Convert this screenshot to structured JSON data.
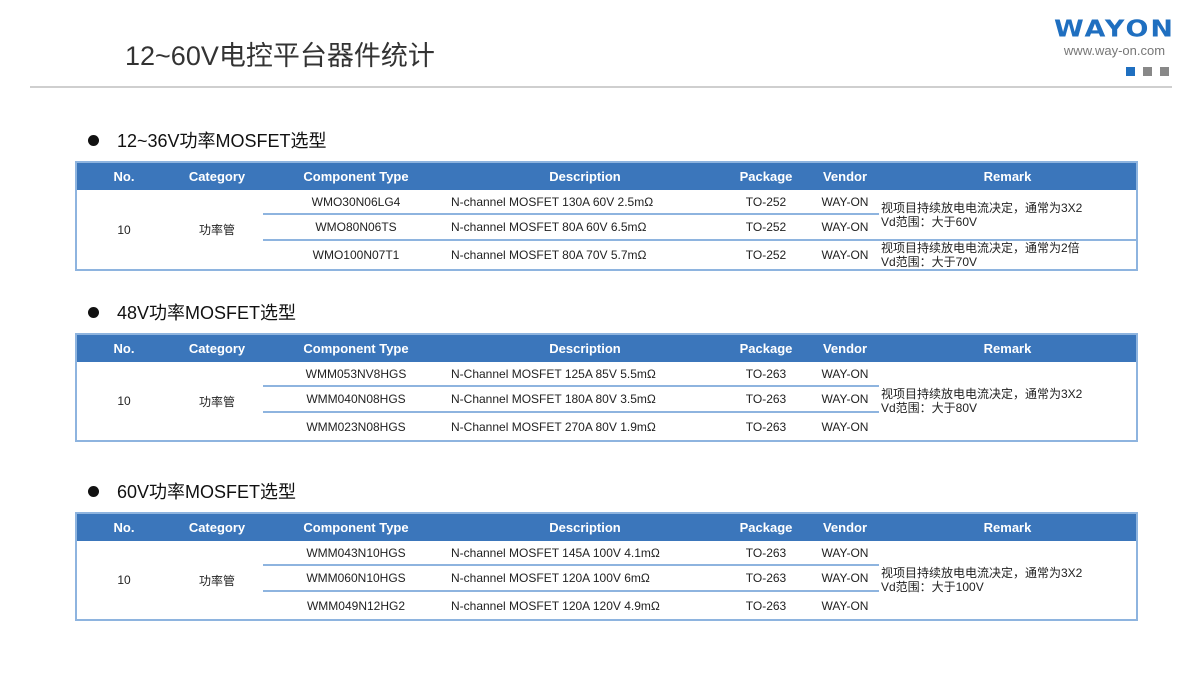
{
  "title": "12~60V电控平台器件统计",
  "logo": {
    "wordmark": "WAYON",
    "url": "www.way-on.com",
    "accent": "#1f6fc0"
  },
  "colors": {
    "header_bg": "#3b76bb",
    "border": "#8eb4df"
  },
  "columns": [
    "No.",
    "Category",
    "Component Type",
    "Description",
    "Package",
    "Vendor",
    "Remark"
  ],
  "sections": [
    {
      "heading": "12~36V功率MOSFET选型",
      "no": "10",
      "category": "功率管",
      "rows": [
        {
          "type": "WMO30N06LG4",
          "desc": "N-channel MOSFET 130A 60V 2.5mΩ",
          "package": "TO-252",
          "vendor": "WAY-ON"
        },
        {
          "type": "WMO80N06TS",
          "desc": "N-channel MOSFET 80A 60V 6.5mΩ",
          "package": "TO-252",
          "vendor": "WAY-ON"
        },
        {
          "type": "WMO100N07T1",
          "desc": "N-channel MOSFET 80A 70V 5.7mΩ",
          "package": "TO-252",
          "vendor": "WAY-ON"
        }
      ],
      "remarks": [
        {
          "line1": "视项目持续放电电流决定，通常为3X2",
          "line2": "Vd范围：大于60V"
        },
        {
          "line1": "视项目持续放电电流决定，通常为2倍",
          "line2": "Vd范围：大于70V"
        }
      ]
    },
    {
      "heading": "48V功率MOSFET选型",
      "no": "10",
      "category": "功率管",
      "rows": [
        {
          "type": "WMM053NV8HGS",
          "desc": "N-Channel MOSFET 125A 85V 5.5mΩ",
          "package": "TO-263",
          "vendor": "WAY-ON"
        },
        {
          "type": "WMM040N08HGS",
          "desc": "N-Channel MOSFET 180A 80V 3.5mΩ",
          "package": "TO-263",
          "vendor": "WAY-ON"
        },
        {
          "type": "WMM023N08HGS",
          "desc": "N-Channel MOSFET 270A 80V 1.9mΩ",
          "package": "TO-263",
          "vendor": "WAY-ON"
        }
      ],
      "remarks": [
        {
          "line1": "视项目持续放电电流决定，通常为3X2",
          "line2": "Vd范围：大于80V"
        }
      ]
    },
    {
      "heading": "60V功率MOSFET选型",
      "no": "10",
      "category": "功率管",
      "rows": [
        {
          "type": "WMM043N10HGS",
          "desc": "N-channel MOSFET 145A 100V 4.1mΩ",
          "package": "TO-263",
          "vendor": "WAY-ON"
        },
        {
          "type": "WMM060N10HGS",
          "desc": "N-channel MOSFET 120A 100V 6mΩ",
          "package": "TO-263",
          "vendor": "WAY-ON"
        },
        {
          "type": "WMM049N12HG2",
          "desc": "N-channel MOSFET 120A 120V 4.9mΩ",
          "package": "TO-263",
          "vendor": "WAY-ON"
        }
      ],
      "remarks": [
        {
          "line1": "视项目持续放电电流决定，通常为3X2",
          "line2": "Vd范围：大于100V"
        }
      ]
    }
  ]
}
